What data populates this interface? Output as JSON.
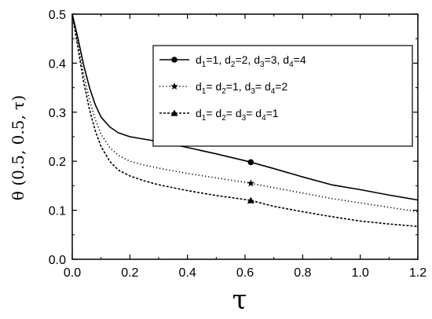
{
  "chart_data": {
    "type": "line",
    "xlabel": "τ",
    "ylabel": "θ (0.5, 0.5, τ)",
    "xlim": [
      0.0,
      1.2
    ],
    "ylim": [
      0.0,
      0.5
    ],
    "xticks": [
      "0.0",
      "0.2",
      "0.4",
      "0.6",
      "0.8",
      "1.0",
      "1.2"
    ],
    "yticks": [
      "0.0",
      "0.1",
      "0.2",
      "0.3",
      "0.4",
      "0.5"
    ],
    "grid": false,
    "legend_position": "top-right",
    "series": [
      {
        "legend": [
          "d",
          "1",
          "=1, d",
          "2",
          "=2, d",
          "3",
          "=3, d",
          "4",
          "=4"
        ],
        "line_style": "solid",
        "marker": "circle",
        "marker_at": [
          0.62,
          0.198
        ],
        "x": [
          0.0,
          0.01,
          0.02,
          0.04,
          0.06,
          0.08,
          0.1,
          0.13,
          0.16,
          0.2,
          0.25,
          0.3,
          0.4,
          0.5,
          0.6,
          0.62,
          0.7,
          0.8,
          0.9,
          1.0,
          1.1,
          1.2
        ],
        "y": [
          0.5,
          0.475,
          0.45,
          0.395,
          0.35,
          0.315,
          0.29,
          0.27,
          0.258,
          0.25,
          0.245,
          0.24,
          0.228,
          0.215,
          0.201,
          0.198,
          0.185,
          0.168,
          0.152,
          0.142,
          0.131,
          0.121
        ]
      },
      {
        "legend": [
          "d",
          "1",
          "= d",
          "2",
          "=1, d",
          "3",
          "= d",
          "4",
          "=2"
        ],
        "line_style": "dotted",
        "marker": "star",
        "marker_at": [
          0.62,
          0.155
        ],
        "x": [
          0.0,
          0.01,
          0.02,
          0.04,
          0.06,
          0.08,
          0.1,
          0.13,
          0.16,
          0.2,
          0.25,
          0.3,
          0.4,
          0.5,
          0.6,
          0.62,
          0.7,
          0.8,
          0.9,
          1.0,
          1.1,
          1.2
        ],
        "y": [
          0.5,
          0.47,
          0.44,
          0.375,
          0.325,
          0.285,
          0.255,
          0.228,
          0.212,
          0.2,
          0.192,
          0.186,
          0.175,
          0.166,
          0.157,
          0.155,
          0.146,
          0.135,
          0.124,
          0.115,
          0.106,
          0.097
        ]
      },
      {
        "legend": [
          "d",
          "1",
          "= d",
          "2",
          "= d",
          "3",
          "= d",
          "4",
          "=1"
        ],
        "line_style": "dashed",
        "marker": "triangle",
        "marker_at": [
          0.62,
          0.12
        ],
        "x": [
          0.0,
          0.01,
          0.02,
          0.04,
          0.06,
          0.08,
          0.1,
          0.13,
          0.16,
          0.2,
          0.25,
          0.3,
          0.4,
          0.5,
          0.6,
          0.62,
          0.7,
          0.8,
          0.9,
          1.0,
          1.1,
          1.2
        ],
        "y": [
          0.5,
          0.465,
          0.43,
          0.36,
          0.305,
          0.262,
          0.23,
          0.2,
          0.182,
          0.17,
          0.16,
          0.152,
          0.14,
          0.13,
          0.122,
          0.12,
          0.108,
          0.097,
          0.087,
          0.078,
          0.072,
          0.067
        ]
      }
    ]
  }
}
